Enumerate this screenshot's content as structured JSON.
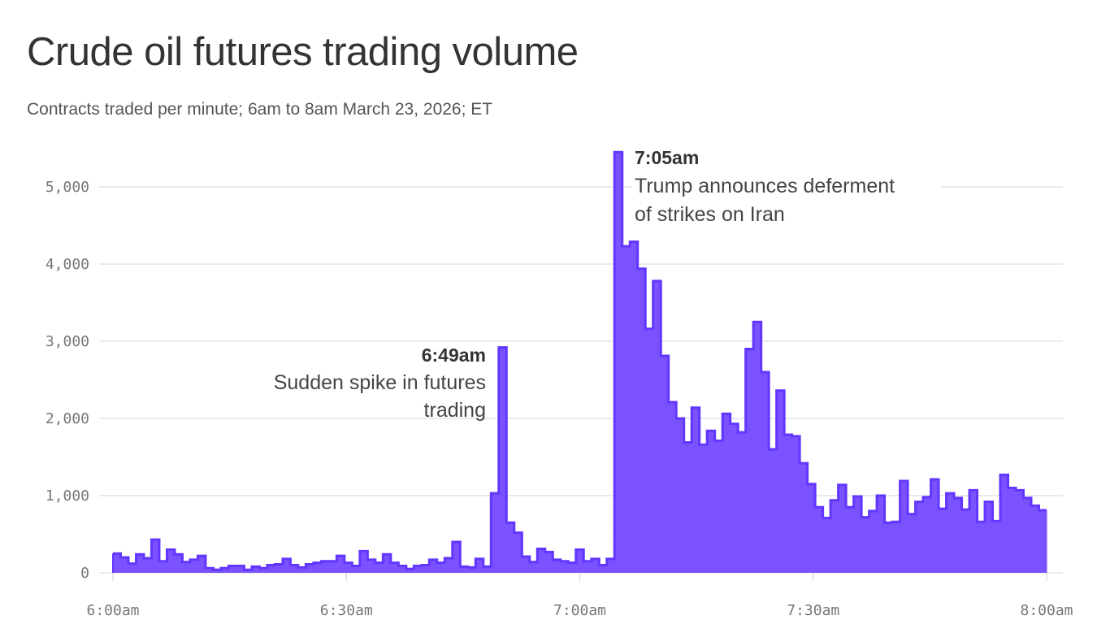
{
  "title": "Crude oil futures trading volume",
  "subtitle": "Contracts traded per minute; 6am to 8am March 23, 2026; ET",
  "chart_data": {
    "type": "area",
    "step": true,
    "title": "Crude oil futures trading volume",
    "subtitle": "Contracts traded per minute; 6am to 8am March 23, 2026; ET",
    "xlabel": "",
    "ylabel": "",
    "x_start": "6:00am",
    "x_interval": "1 minute",
    "xlim": [
      "6:00am",
      "8:00am"
    ],
    "ylim": [
      0,
      5500
    ],
    "grid": true,
    "x_ticks": [
      "6:00am",
      "6:30am",
      "7:00am",
      "7:30am",
      "8:00am"
    ],
    "y_ticks": [
      "0",
      "1,000",
      "2,000",
      "3,000",
      "4,000",
      "5,000"
    ],
    "y_tick_values": [
      0,
      1000,
      2000,
      3000,
      4000,
      5000
    ],
    "color": "#7b52ff",
    "line_color": "#6236ff",
    "values": [
      250,
      200,
      120,
      240,
      190,
      430,
      150,
      300,
      240,
      140,
      170,
      220,
      60,
      40,
      60,
      90,
      90,
      40,
      80,
      60,
      100,
      110,
      180,
      100,
      70,
      110,
      130,
      150,
      150,
      220,
      130,
      90,
      280,
      170,
      130,
      240,
      130,
      90,
      50,
      90,
      100,
      170,
      130,
      190,
      400,
      80,
      70,
      180,
      80,
      1030,
      2920,
      650,
      520,
      210,
      140,
      310,
      270,
      170,
      150,
      130,
      300,
      150,
      180,
      100,
      180,
      5450,
      4230,
      4290,
      3940,
      3160,
      3780,
      2810,
      2210,
      2000,
      1690,
      2140,
      1660,
      1840,
      1710,
      2060,
      1930,
      1820,
      2900,
      3250,
      2600,
      1600,
      2360,
      1790,
      1770,
      1420,
      1150,
      850,
      710,
      940,
      1140,
      850,
      990,
      720,
      800,
      1000,
      650,
      660,
      1190,
      760,
      920,
      980,
      1210,
      830,
      1030,
      970,
      820,
      1070,
      660,
      920,
      670,
      1270,
      1100,
      1070,
      970,
      870,
      810
    ],
    "annotations": [
      {
        "time": "6:49am",
        "label": "6:49am",
        "text_lines": [
          "Sudden spike in futures",
          "trading"
        ]
      },
      {
        "time": "7:05am",
        "label": "7:05am",
        "text_lines": [
          "Trump announces deferment",
          "of strikes on Iran"
        ]
      }
    ]
  }
}
